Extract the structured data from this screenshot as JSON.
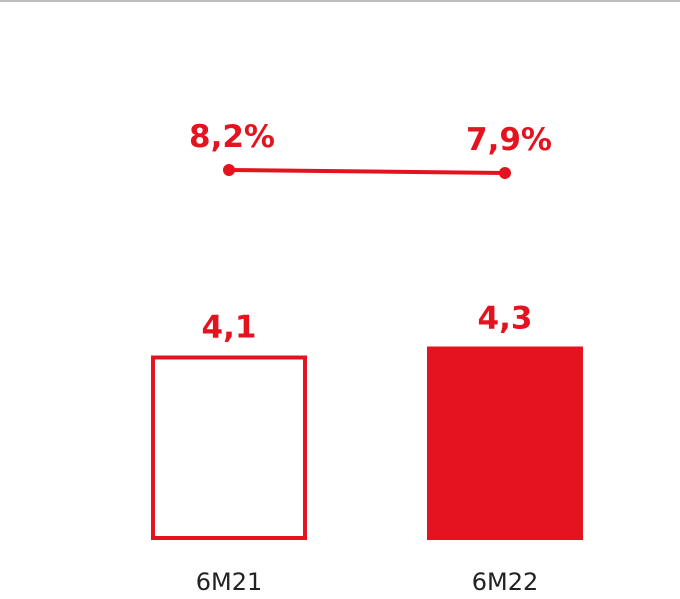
{
  "chart_data": {
    "type": "bar",
    "categories": [
      "6M21",
      "6M22"
    ],
    "series": [
      {
        "type": "bar",
        "values": [
          4.1,
          4.3
        ],
        "labels": [
          "4,1",
          "4,3"
        ],
        "styles": [
          "outline",
          "filled"
        ]
      },
      {
        "type": "line",
        "values": [
          8.2,
          7.9
        ],
        "labels": [
          "8,2%",
          "7,9%"
        ]
      }
    ],
    "grid": false,
    "legend": "none"
  },
  "colors": {
    "accent": "#e3131f",
    "text": "#222222",
    "rule": "#bdbdbd"
  }
}
